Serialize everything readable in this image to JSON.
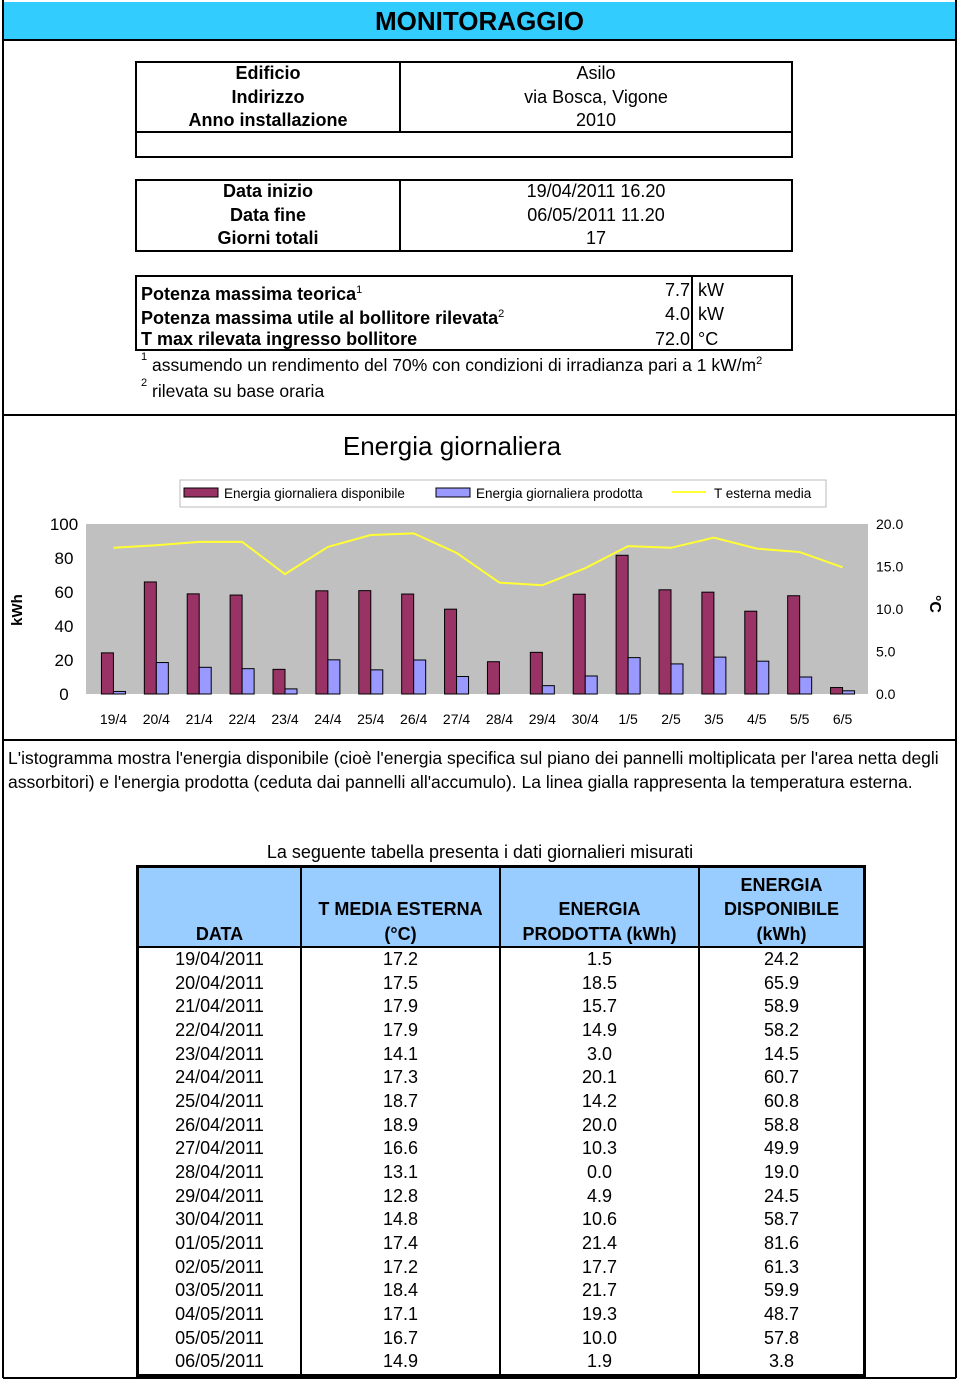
{
  "header": {
    "title": "MONITORAGGIO"
  },
  "building": {
    "rows": [
      [
        "Edificio",
        "Asilo"
      ],
      [
        "Indirizzo",
        "via Bosca, Vigone"
      ],
      [
        "Anno installazione",
        "2010"
      ]
    ]
  },
  "period": {
    "rows": [
      [
        "Data inizio",
        "19/04/2011 16.20"
      ],
      [
        "Data fine",
        "06/05/2011 11.20"
      ],
      [
        "Giorni totali",
        "17"
      ]
    ]
  },
  "power": {
    "rows": [
      {
        "label": "Potenza massima teorica",
        "sup": "1",
        "value": "7.7",
        "unit": "kW"
      },
      {
        "label": "Potenza massima utile al bollitore rilevata",
        "sup": "2",
        "value": "4.0",
        "unit": "kW"
      },
      {
        "label": "T max rilevata ingresso bollitore",
        "value": "72.0",
        "unit": "°C"
      }
    ]
  },
  "notes": [
    {
      "mark": "1",
      "text": "assumendo un rendimento del 70% con condizioni di irradianza pari a 1 kW/m",
      "sup": "2"
    },
    {
      "mark": "2",
      "text": "rilevata su base oraria"
    }
  ],
  "chart_data": {
    "type": "bar",
    "title": "Energia giornaliera",
    "categories": [
      "19/4",
      "20/4",
      "21/4",
      "22/4",
      "23/4",
      "24/4",
      "25/4",
      "26/4",
      "27/4",
      "28/4",
      "29/4",
      "30/4",
      "1/5",
      "2/5",
      "3/5",
      "4/5",
      "5/5",
      "6/5"
    ],
    "series": [
      {
        "name": "Energia giornaliera disponibile",
        "color": "#993366",
        "values": [
          24.2,
          65.9,
          58.9,
          58.2,
          14.5,
          60.7,
          60.8,
          58.8,
          49.9,
          19.0,
          24.5,
          58.7,
          81.6,
          61.3,
          59.9,
          48.7,
          57.8,
          3.8
        ]
      },
      {
        "name": "Energia giornaliera prodotta",
        "color": "#9999ff",
        "values": [
          1.5,
          18.5,
          15.7,
          14.9,
          3.0,
          20.1,
          14.2,
          20.0,
          10.3,
          0.0,
          4.9,
          10.6,
          21.4,
          17.7,
          21.7,
          19.3,
          10.0,
          1.9
        ]
      },
      {
        "name": "T esterna media",
        "color": "#ffff33",
        "type": "line",
        "axis": "y2",
        "values": [
          17.2,
          17.5,
          17.9,
          17.9,
          14.1,
          17.3,
          18.7,
          18.9,
          16.6,
          13.1,
          12.8,
          14.8,
          17.4,
          17.2,
          18.4,
          17.1,
          16.7,
          14.9
        ]
      }
    ],
    "ylabel": "kWh",
    "y2label": "°C",
    "ylim": [
      0,
      100
    ],
    "yticks": [
      0,
      20,
      40,
      60,
      80,
      100
    ],
    "y2lim": [
      0,
      20
    ],
    "y2ticks": [
      {
        "value": 0,
        "label": "0.0"
      },
      {
        "value": 5,
        "label": "5.0"
      },
      {
        "value": 10,
        "label": "10.0"
      },
      {
        "value": 15,
        "label": "15.0"
      },
      {
        "value": 20,
        "label": "20.0"
      }
    ],
    "grid": false,
    "legend": "top"
  },
  "description": "L'istogramma mostra l'energia disponibile (cioè l'energia specifica sul piano dei pannelli moltiplicata per l'area netta degli assorbitori) e l'energia prodotta (ceduta dai pannelli all'accumulo). La linea gialla rappresenta la temperatura esterna.",
  "data_table": {
    "caption": "La seguente tabella presenta i dati giornalieri misurati",
    "headers": [
      [
        "DATA"
      ],
      [
        "T MEDIA ESTERNA",
        "(°C)"
      ],
      [
        "ENERGIA",
        "PRODOTTA (kWh)"
      ],
      [
        "ENERGIA",
        "DISPONIBILE",
        "(kWh)"
      ]
    ],
    "rows": [
      [
        "19/04/2011",
        "17.2",
        "1.5",
        "24.2"
      ],
      [
        "20/04/2011",
        "17.5",
        "18.5",
        "65.9"
      ],
      [
        "21/04/2011",
        "17.9",
        "15.7",
        "58.9"
      ],
      [
        "22/04/2011",
        "17.9",
        "14.9",
        "58.2"
      ],
      [
        "23/04/2011",
        "14.1",
        "3.0",
        "14.5"
      ],
      [
        "24/04/2011",
        "17.3",
        "20.1",
        "60.7"
      ],
      [
        "25/04/2011",
        "18.7",
        "14.2",
        "60.8"
      ],
      [
        "26/04/2011",
        "18.9",
        "20.0",
        "58.8"
      ],
      [
        "27/04/2011",
        "16.6",
        "10.3",
        "49.9"
      ],
      [
        "28/04/2011",
        "13.1",
        "0.0",
        "19.0"
      ],
      [
        "29/04/2011",
        "12.8",
        "4.9",
        "24.5"
      ],
      [
        "30/04/2011",
        "14.8",
        "10.6",
        "58.7"
      ],
      [
        "01/05/2011",
        "17.4",
        "21.4",
        "81.6"
      ],
      [
        "02/05/2011",
        "17.2",
        "17.7",
        "61.3"
      ],
      [
        "03/05/2011",
        "18.4",
        "21.7",
        "59.9"
      ],
      [
        "04/05/2011",
        "17.1",
        "19.3",
        "48.7"
      ],
      [
        "05/05/2011",
        "16.7",
        "10.0",
        "57.8"
      ],
      [
        "06/05/2011",
        "14.9",
        "1.9",
        "3.8"
      ]
    ]
  }
}
